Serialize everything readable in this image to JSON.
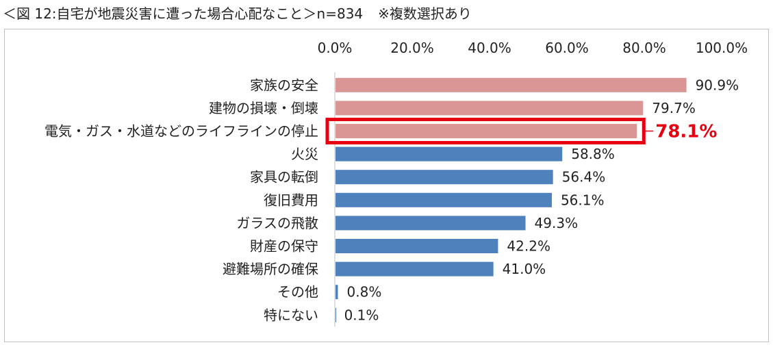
{
  "title": "＜図 12:自宅が地震災害に遭った場合心配なこと＞n=834",
  "note": "※複数選択あり",
  "colors": {
    "highlight_bar": "#d99694",
    "normal_bar": "#4f81bd",
    "highlight_box": "#e60012"
  },
  "chart_data": {
    "type": "bar",
    "orientation": "horizontal",
    "categories": [
      "家族の安全",
      "建物の損壊・倒壊",
      "電気・ガス・水道などのライフラインの停止",
      "火災",
      "家具の転倒",
      "復旧費用",
      "ガラスの飛散",
      "財産の保守",
      "避難場所の確保",
      "その他",
      "特にない"
    ],
    "values": [
      90.9,
      79.7,
      78.1,
      58.8,
      56.4,
      56.1,
      49.3,
      42.2,
      41.0,
      0.8,
      0.1
    ],
    "value_labels": [
      "90.9%",
      "79.7%",
      "78.1%",
      "58.8%",
      "56.4%",
      "56.1%",
      "49.3%",
      "42.2%",
      "41.0%",
      "0.8%",
      "0.1%"
    ],
    "xlim": [
      0,
      100
    ],
    "ticks": [
      "0.0%",
      "20.0%",
      "40.0%",
      "60.0%",
      "80.0%",
      "100.0%"
    ],
    "tick_values": [
      0,
      20,
      40,
      60,
      80,
      100
    ],
    "axis_position": "top",
    "highlight_count": 3,
    "boxed_category": "電気・ガス・水道などのライフラインの停止",
    "grid": false
  }
}
